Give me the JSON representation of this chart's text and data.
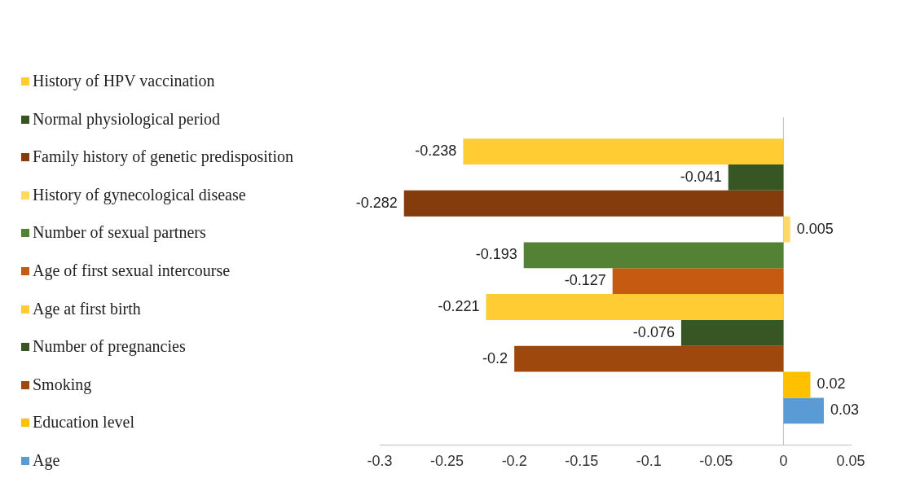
{
  "chart_data": {
    "type": "bar",
    "orientation": "horizontal",
    "categories": [
      null
    ],
    "series": [
      {
        "name": "History of HPV vaccination",
        "color": "#ffcd33",
        "values": [
          -0.238
        ]
      },
      {
        "name": "Normal physiological period",
        "color": "#375623",
        "values": [
          -0.041
        ]
      },
      {
        "name": "Family history of genetic predisposition",
        "color": "#843c0c",
        "values": [
          -0.282
        ]
      },
      {
        "name": "History of gynecological disease",
        "color": "#ffd966",
        "values": [
          0.005
        ]
      },
      {
        "name": "Number of sexual partners",
        "color": "#548235",
        "values": [
          -0.193
        ]
      },
      {
        "name": "Age of first sexual intercourse",
        "color": "#c55a11",
        "values": [
          -0.127
        ]
      },
      {
        "name": "Age at first birth",
        "color": "#ffcd33",
        "values": [
          -0.221
        ]
      },
      {
        "name": "Number of pregnancies",
        "color": "#375623",
        "values": [
          -0.076
        ]
      },
      {
        "name": "Smoking",
        "color": "#9e480e",
        "values": [
          -0.2
        ]
      },
      {
        "name": "Education level",
        "color": "#ffc000",
        "values": [
          0.02
        ]
      },
      {
        "name": "Age",
        "color": "#5b9bd5",
        "values": [
          0.03
        ]
      }
    ],
    "xlim": [
      -0.3,
      0.05
    ],
    "xticks": [
      -0.3,
      -0.25,
      -0.2,
      -0.15,
      -0.1,
      -0.05,
      0,
      0.05
    ],
    "ref_lines": [
      {
        "axis": "x",
        "value": 0,
        "color": "#bfbfbf"
      }
    ],
    "data_labels": true,
    "legend": "left",
    "grid": false
  }
}
